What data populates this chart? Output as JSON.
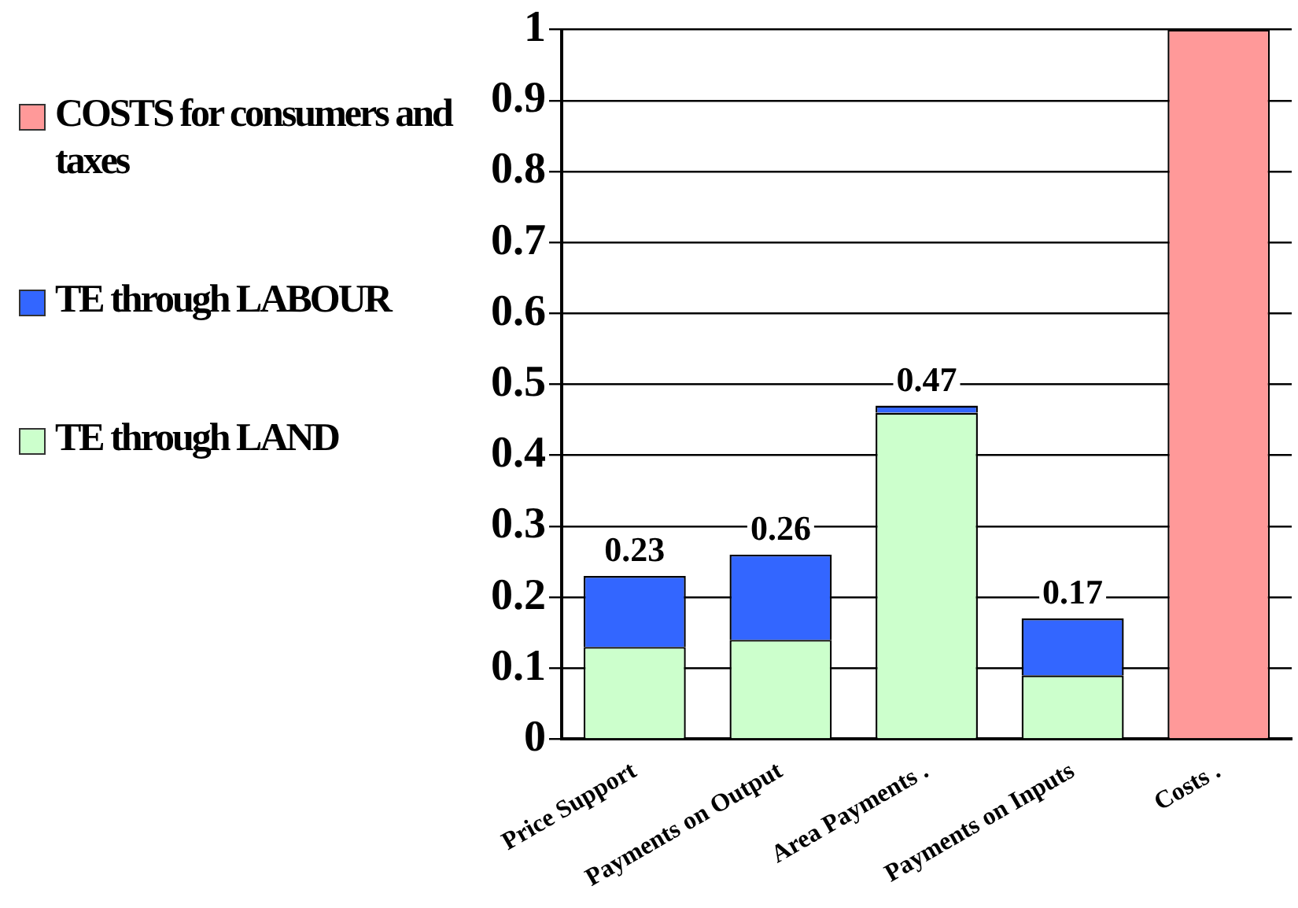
{
  "chart_data": {
    "type": "bar",
    "stacked": true,
    "categories": [
      "Price Support",
      "Payments on Output",
      "Area Payments .",
      "Payments on Inputs",
      "Costs ."
    ],
    "series": [
      {
        "name": "TE through LAND",
        "color": "#ccffcc",
        "values": [
          0.13,
          0.14,
          0.46,
          0.09,
          null
        ]
      },
      {
        "name": "TE through LABOUR",
        "color": "#3366ff",
        "values": [
          0.1,
          0.12,
          0.01,
          0.08,
          null
        ]
      },
      {
        "name": "COSTS for consumers and taxes",
        "color": "#ff9999",
        "values": [
          null,
          null,
          null,
          null,
          1
        ]
      }
    ],
    "totals": [
      "0.23",
      "0.26",
      "0.47",
      "0.17",
      null
    ],
    "ylim": [
      0,
      1
    ],
    "yticks": [
      0,
      0.1,
      0.2,
      0.3,
      0.4,
      0.5,
      0.6,
      0.7,
      0.8,
      0.9,
      1
    ],
    "grid": "y",
    "legend": "left"
  }
}
